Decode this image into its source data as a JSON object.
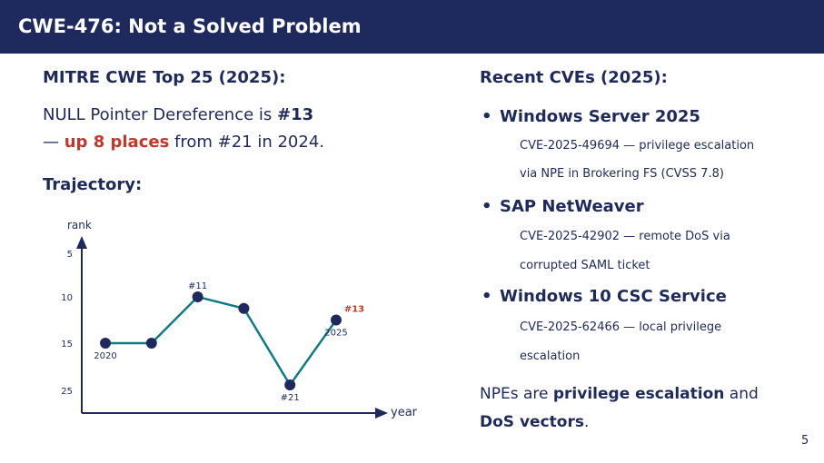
{
  "title": "CWE-476: Not a Solved Problem",
  "left": {
    "heading": "MITRE CWE Top 25 (2025):",
    "line1_pre": "NULL Pointer Dereference is ",
    "line1_rank": "#13",
    "line2_dash": "— ",
    "line2_highlight": "up 8 places",
    "line2_post": " from #21 in 2024.",
    "trajectory": "Trajectory:"
  },
  "chart_data": {
    "type": "line",
    "xlabel": "year",
    "ylabel": "rank",
    "yticks": [
      "5",
      "10",
      "15",
      "25"
    ],
    "x": [
      2020,
      2021,
      2022,
      2023,
      2024,
      2025
    ],
    "values": [
      15,
      15,
      11,
      12,
      21,
      13
    ],
    "annotations": [
      {
        "x": 2020,
        "text": "2020"
      },
      {
        "x": 2022,
        "text": "#11"
      },
      {
        "x": 2024,
        "text": "#21"
      },
      {
        "x": 2025,
        "text": "2025"
      },
      {
        "x": 2025,
        "text": "#13"
      }
    ],
    "line_color": "#0e7c86",
    "point_color": "#1e2a5e",
    "highlight_color": "#c0392b"
  },
  "right": {
    "heading": "Recent CVEs (2025):",
    "items": [
      {
        "title": "Windows Server 2025",
        "l1": "CVE-2025-49694 — privilege escalation",
        "l2": "via NPE in Brokering FS (CVSS 7.8)"
      },
      {
        "title": "SAP NetWeaver",
        "l1": "CVE-2025-42902 — remote DoS via",
        "l2": "corrupted SAML ticket"
      },
      {
        "title": "Windows 10 CSC Service",
        "l1": "CVE-2025-62466 — local privilege",
        "l2": "escalation"
      }
    ],
    "concl_pre": "NPEs are ",
    "concl_b1": "privilege escalation",
    "concl_mid": " and",
    "concl_b2": "DoS vectors",
    "concl_post": "."
  },
  "page_number": "5"
}
